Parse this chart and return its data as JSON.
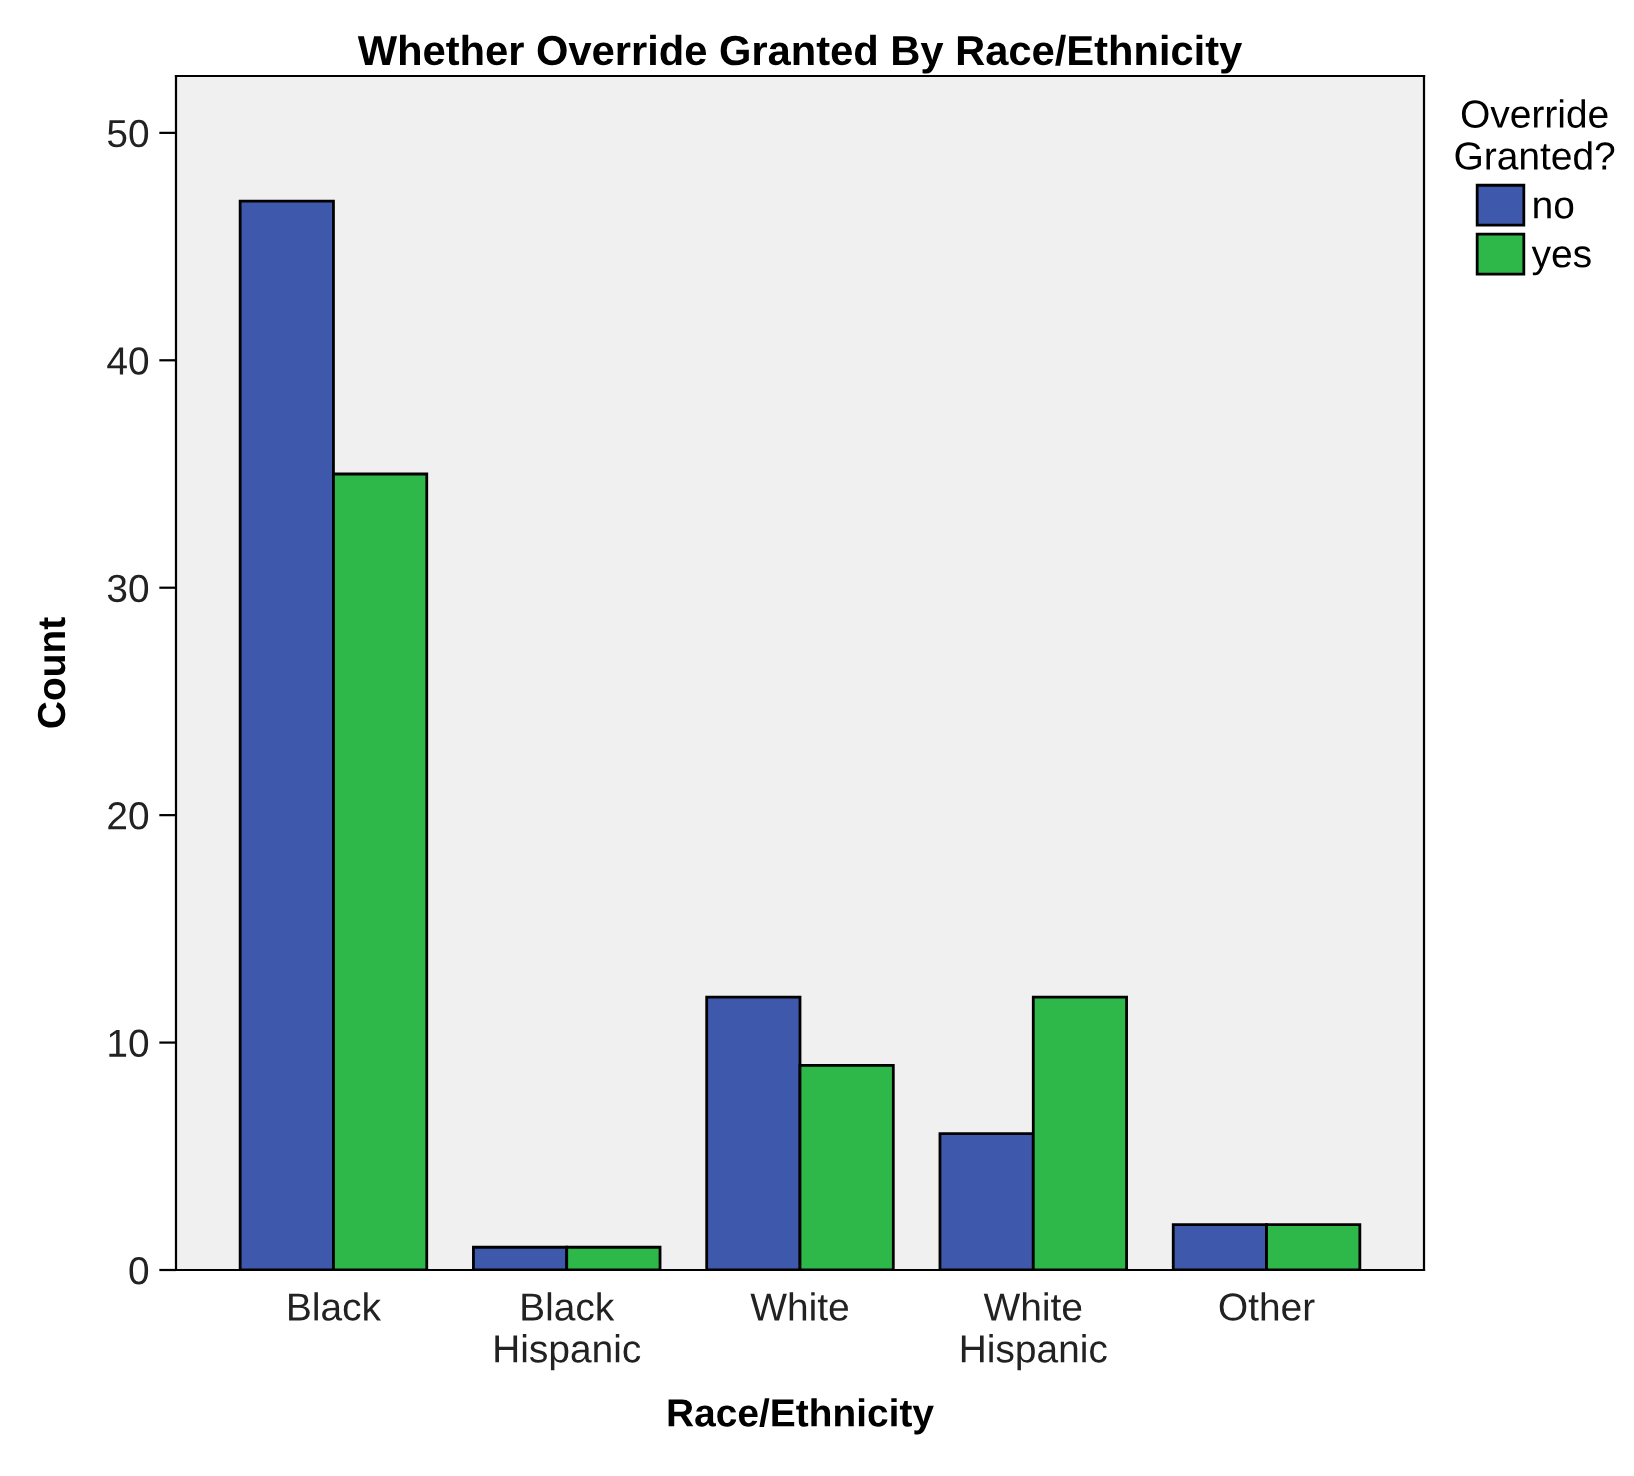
{
  "chart_data": {
    "type": "bar",
    "title": "Whether Override Granted By Race/Ethnicity",
    "xlabel": "Race/Ethnicity",
    "ylabel": "Count",
    "legend_title": "Override\nGranted?",
    "categories": [
      "Black",
      "Black\nHispanic",
      "White",
      "White\nHispanic",
      "Other"
    ],
    "series": [
      {
        "name": "no",
        "color": "#3e58ac",
        "values": [
          47,
          1,
          12,
          6,
          2
        ]
      },
      {
        "name": "yes",
        "color": "#2eb84a",
        "values": [
          35,
          1,
          9,
          12,
          2
        ]
      }
    ],
    "ylim": [
      0,
      52.5
    ],
    "yticks": [
      0,
      10,
      20,
      30,
      40,
      50
    ],
    "grid": false,
    "legend": "top right"
  }
}
